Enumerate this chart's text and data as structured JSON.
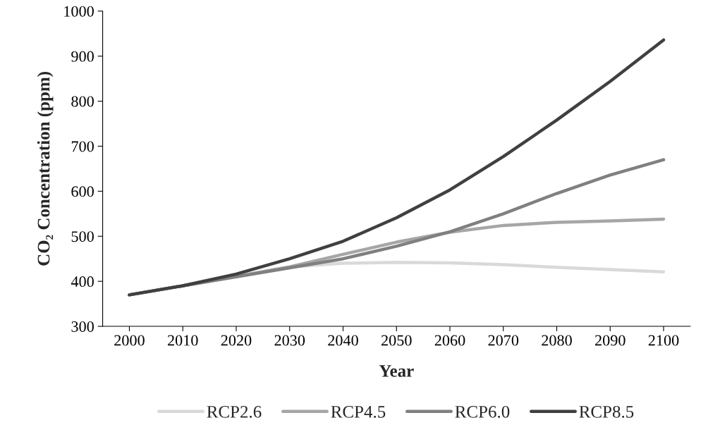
{
  "chart_data": {
    "type": "line",
    "xlabel": "Year",
    "ylabel": "CO₂ Concentration (ppm)",
    "categories": [
      "2000",
      "2010",
      "2020",
      "2030",
      "2040",
      "2050",
      "2060",
      "2070",
      "2080",
      "2090",
      "2100"
    ],
    "series": [
      {
        "name": "RCP2.6",
        "color": "#d9d9d9",
        "values": [
          370,
          390,
          411,
          432,
          440,
          442,
          441,
          437,
          431,
          426,
          421
        ]
      },
      {
        "name": "RCP4.5",
        "color": "#a6a6a6",
        "values": [
          370,
          390,
          411,
          432,
          460,
          487,
          509,
          524,
          531,
          534,
          538
        ]
      },
      {
        "name": "RCP6.0",
        "color": "#808080",
        "values": [
          370,
          390,
          410,
          430,
          450,
          478,
          510,
          550,
          595,
          636,
          670
        ]
      },
      {
        "name": "RCP8.5",
        "color": "#404040",
        "values": [
          370,
          390,
          416,
          450,
          489,
          541,
          603,
          677,
          758,
          844,
          936
        ]
      }
    ],
    "ylim": [
      300,
      1000
    ],
    "yticks": [
      300,
      400,
      500,
      600,
      700,
      800,
      900,
      1000
    ],
    "grid": false,
    "legend": "bottom",
    "marker": "none",
    "line_style": "solid"
  }
}
